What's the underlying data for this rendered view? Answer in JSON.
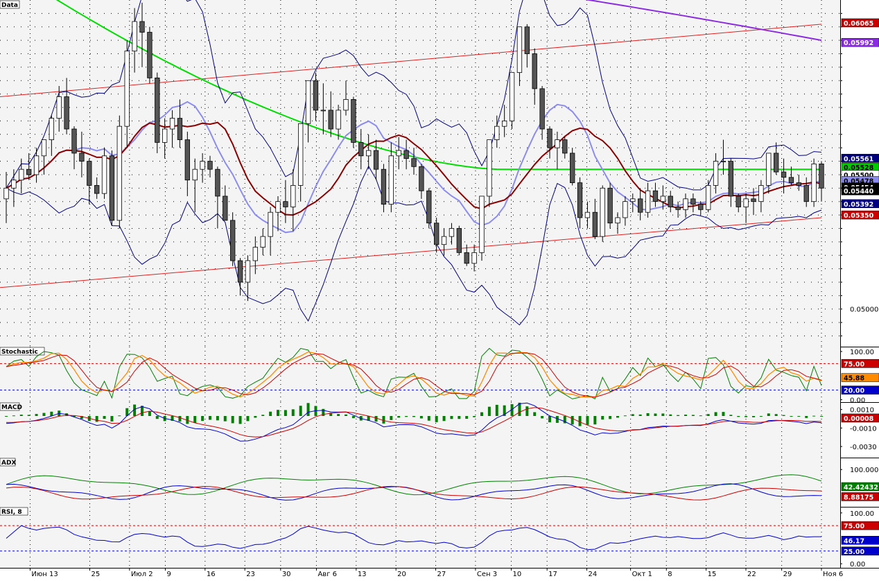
{
  "chart_data": {
    "type": "candlestick-with-indicators",
    "x_axis_labels": [
      "Июн 13",
      "25",
      "Июл 2",
      "9",
      "16",
      "23",
      "30",
      "Авг 6",
      "13",
      "20",
      "27",
      "Сен 3",
      "10",
      "17",
      "24",
      "Окт 1",
      "8",
      "15",
      "22",
      "29",
      "Ноя 6"
    ],
    "panels": [
      {
        "name": "Data",
        "y_ticks": [
          "0.05000"
        ],
        "ylim": [
          0.0486,
          0.0615
        ],
        "value_tags": [
          {
            "text": "0.06065",
            "color": "#cc0000"
          },
          {
            "text": "0.05992",
            "color": "#8a2be2"
          },
          {
            "text": "0.05561",
            "color": "#000080"
          },
          {
            "text": "0.05528",
            "color": "#00cc00"
          },
          {
            "text": "0.05500",
            "color": "#ffffff"
          },
          {
            "text": "0.05478",
            "color": "#8c8cf0"
          },
          {
            "text": "0.05454",
            "color": "#000000"
          },
          {
            "text": "0.05440",
            "color": "#000000"
          },
          {
            "text": "0.05392",
            "color": "#000080"
          },
          {
            "text": "0.05350",
            "color": "#cc0000"
          }
        ],
        "candles_ohlc": [
          [
            0.0541,
            0.0551,
            0.0532,
            0.0545
          ],
          [
            0.0545,
            0.0552,
            0.0538,
            0.0548
          ],
          [
            0.0548,
            0.0556,
            0.0543,
            0.0552
          ],
          [
            0.0552,
            0.0558,
            0.0548,
            0.055
          ],
          [
            0.055,
            0.056,
            0.0547,
            0.0557
          ],
          [
            0.0557,
            0.0563,
            0.055,
            0.0563
          ],
          [
            0.0563,
            0.0572,
            0.0557,
            0.0571
          ],
          [
            0.0571,
            0.0583,
            0.0566,
            0.0579
          ],
          [
            0.0579,
            0.0586,
            0.0565,
            0.0567
          ],
          [
            0.0567,
            0.0568,
            0.0552,
            0.0558
          ],
          [
            0.0558,
            0.0566,
            0.0549,
            0.0555
          ],
          [
            0.0555,
            0.0556,
            0.0539,
            0.0546
          ],
          [
            0.0546,
            0.0549,
            0.0541,
            0.0543
          ],
          [
            0.0543,
            0.056,
            0.0541,
            0.0557
          ],
          [
            0.0557,
            0.0559,
            0.0531,
            0.0533
          ],
          [
            0.0533,
            0.0572,
            0.053,
            0.0568
          ],
          [
            0.0568,
            0.06,
            0.056,
            0.0596
          ],
          [
            0.0596,
            0.0612,
            0.0588,
            0.0607
          ],
          [
            0.0607,
            0.0614,
            0.059,
            0.0603
          ],
          [
            0.0603,
            0.0605,
            0.0584,
            0.0586
          ],
          [
            0.0586,
            0.0588,
            0.0558,
            0.0562
          ],
          [
            0.0562,
            0.0571,
            0.0556,
            0.0567
          ],
          [
            0.0567,
            0.0574,
            0.056,
            0.0571
          ],
          [
            0.0571,
            0.0578,
            0.056,
            0.0563
          ],
          [
            0.0563,
            0.0566,
            0.0542,
            0.0548
          ],
          [
            0.0548,
            0.0556,
            0.0536,
            0.0552
          ],
          [
            0.0552,
            0.0558,
            0.0547,
            0.0555
          ],
          [
            0.0555,
            0.0557,
            0.0549,
            0.0552
          ],
          [
            0.0552,
            0.0553,
            0.053,
            0.0542
          ],
          [
            0.0542,
            0.0546,
            0.0537,
            0.0533
          ],
          [
            0.0533,
            0.0536,
            0.0516,
            0.0518
          ],
          [
            0.0518,
            0.0519,
            0.0505,
            0.051
          ],
          [
            0.051,
            0.052,
            0.0503,
            0.0518
          ],
          [
            0.0518,
            0.0527,
            0.0513,
            0.0523
          ],
          [
            0.0523,
            0.053,
            0.052,
            0.0527
          ],
          [
            0.0527,
            0.0538,
            0.052,
            0.0536
          ],
          [
            0.0536,
            0.0542,
            0.0529,
            0.054
          ],
          [
            0.054,
            0.0548,
            0.0532,
            0.0538
          ],
          [
            0.0538,
            0.0552,
            0.0529,
            0.0546
          ],
          [
            0.0546,
            0.0565,
            0.054,
            0.0569
          ],
          [
            0.0569,
            0.0583,
            0.0562,
            0.0585
          ],
          [
            0.0585,
            0.0588,
            0.057,
            0.0574
          ],
          [
            0.0574,
            0.0584,
            0.0565,
            0.0574
          ],
          [
            0.0574,
            0.0581,
            0.0564,
            0.0567
          ],
          [
            0.0567,
            0.0576,
            0.0563,
            0.0574
          ],
          [
            0.0574,
            0.0585,
            0.0572,
            0.0578
          ],
          [
            0.0578,
            0.0579,
            0.056,
            0.0562
          ],
          [
            0.0562,
            0.0567,
            0.0552,
            0.0557
          ],
          [
            0.0557,
            0.0565,
            0.0552,
            0.0559
          ],
          [
            0.0559,
            0.0563,
            0.0548,
            0.0552
          ],
          [
            0.0552,
            0.0554,
            0.0536,
            0.0539
          ],
          [
            0.0539,
            0.0562,
            0.0536,
            0.0557
          ],
          [
            0.0557,
            0.0564,
            0.0552,
            0.0559
          ],
          [
            0.0559,
            0.0563,
            0.0552,
            0.0556
          ],
          [
            0.0556,
            0.056,
            0.055,
            0.0553
          ],
          [
            0.0553,
            0.0554,
            0.0541,
            0.0544
          ],
          [
            0.0544,
            0.0545,
            0.053,
            0.0532
          ],
          [
            0.0532,
            0.0534,
            0.0521,
            0.0524
          ],
          [
            0.0524,
            0.053,
            0.052,
            0.0527
          ],
          [
            0.0527,
            0.0532,
            0.0524,
            0.053
          ],
          [
            0.053,
            0.0531,
            0.052,
            0.0521
          ],
          [
            0.0521,
            0.0524,
            0.0516,
            0.0517
          ],
          [
            0.0517,
            0.0524,
            0.0514,
            0.0521
          ],
          [
            0.0521,
            0.0541,
            0.0518,
            0.0542
          ],
          [
            0.0542,
            0.056,
            0.0538,
            0.0563
          ],
          [
            0.0563,
            0.0572,
            0.056,
            0.0568
          ],
          [
            0.0568,
            0.0576,
            0.0564,
            0.057
          ],
          [
            0.057,
            0.0586,
            0.0567,
            0.0588
          ],
          [
            0.0588,
            0.0604,
            0.0583,
            0.0605
          ],
          [
            0.0605,
            0.0606,
            0.059,
            0.0595
          ],
          [
            0.0595,
            0.0597,
            0.0576,
            0.0582
          ],
          [
            0.0582,
            0.0583,
            0.0563,
            0.0567
          ],
          [
            0.0567,
            0.0568,
            0.0556,
            0.056
          ],
          [
            0.056,
            0.0566,
            0.0552,
            0.0563
          ],
          [
            0.0563,
            0.0564,
            0.0556,
            0.0558
          ],
          [
            0.0558,
            0.056,
            0.0546,
            0.0547
          ],
          [
            0.0547,
            0.0549,
            0.053,
            0.0534
          ],
          [
            0.0534,
            0.054,
            0.053,
            0.0536
          ],
          [
            0.0536,
            0.0541,
            0.0526,
            0.0527
          ],
          [
            0.0527,
            0.0546,
            0.0525,
            0.0545
          ],
          [
            0.0545,
            0.0547,
            0.053,
            0.0532
          ],
          [
            0.0532,
            0.0536,
            0.0528,
            0.0534
          ],
          [
            0.0534,
            0.0542,
            0.0531,
            0.054
          ],
          [
            0.054,
            0.0543,
            0.0536,
            0.0541
          ],
          [
            0.0541,
            0.0545,
            0.0533,
            0.0536
          ],
          [
            0.0536,
            0.0547,
            0.0534,
            0.0544
          ],
          [
            0.0544,
            0.0547,
            0.0538,
            0.054
          ],
          [
            0.054,
            0.0546,
            0.0537,
            0.0542
          ],
          [
            0.0542,
            0.0544,
            0.0536,
            0.0538
          ],
          [
            0.0538,
            0.054,
            0.0534,
            0.0537
          ],
          [
            0.0537,
            0.0543,
            0.0534,
            0.0541
          ],
          [
            0.0541,
            0.0543,
            0.0536,
            0.0539
          ],
          [
            0.0539,
            0.054,
            0.0535,
            0.0537
          ],
          [
            0.0537,
            0.0548,
            0.0536,
            0.0546
          ],
          [
            0.0546,
            0.0558,
            0.0543,
            0.0555
          ],
          [
            0.0555,
            0.0563,
            0.055,
            0.0555
          ],
          [
            0.0555,
            0.0556,
            0.0538,
            0.0542
          ],
          [
            0.0542,
            0.0543,
            0.0536,
            0.0538
          ],
          [
            0.0538,
            0.0543,
            0.0532,
            0.0541
          ],
          [
            0.0541,
            0.0545,
            0.0535,
            0.054
          ],
          [
            0.054,
            0.0548,
            0.0536,
            0.0546
          ],
          [
            0.0546,
            0.0557,
            0.0543,
            0.0558
          ],
          [
            0.0558,
            0.0562,
            0.055,
            0.0551
          ],
          [
            0.0551,
            0.0556,
            0.0543,
            0.0549
          ],
          [
            0.0549,
            0.0553,
            0.0546,
            0.0547
          ],
          [
            0.0547,
            0.055,
            0.0544,
            0.0546
          ],
          [
            0.0546,
            0.0549,
            0.0538,
            0.054
          ],
          [
            0.054,
            0.0556,
            0.0538,
            0.0554
          ],
          [
            0.0554,
            0.0555,
            0.054,
            0.0545
          ]
        ]
      },
      {
        "name": "Stochastic",
        "y_ticks": [
          "100.00",
          "0.00"
        ],
        "ylim": [
          -5,
          110
        ],
        "value_tags": [
          {
            "text": "75.00",
            "color": "#cc0000"
          },
          {
            "text": "45.88",
            "color": "#ff8c00"
          },
          {
            "text": "20.00",
            "color": "#0000cc"
          }
        ],
        "levels": [
          75,
          20
        ]
      },
      {
        "name": "MACD",
        "y_ticks": [
          "0.0010",
          "-0.0010",
          "-0.0030"
        ],
        "ylim": [
          -0.0042,
          0.0018
        ],
        "value_tags": [
          {
            "text": "0.00008",
            "color": "#cc0000"
          }
        ]
      },
      {
        "name": "ADX",
        "y_ticks": [
          "100.00000"
        ],
        "ylim": [
          -25,
          140
        ],
        "value_tags": [
          {
            "text": "42.42432",
            "color": "#008000"
          },
          {
            "text": "8.88175",
            "color": "#cc0000"
          }
        ]
      },
      {
        "name": "RSI, 8",
        "y_ticks": [
          "100.00",
          "0.00"
        ],
        "ylim": [
          -8,
          112
        ],
        "value_tags": [
          {
            "text": "75.00",
            "color": "#cc0000"
          },
          {
            "text": "46.17",
            "color": "#0000cc"
          },
          {
            "text": "25.00",
            "color": "#0000cc"
          }
        ],
        "levels": [
          75,
          25
        ]
      }
    ],
    "grid": true,
    "colors": {
      "bull": "#ffffff",
      "bear": "#555555",
      "ma_short": "#8b0000",
      "ma_bb_mid": "#8c8cf0",
      "bb": "#000080",
      "ma_long": "#00dd00",
      "ma_very_long": "#8a2be2",
      "channel": "#e02020"
    }
  }
}
